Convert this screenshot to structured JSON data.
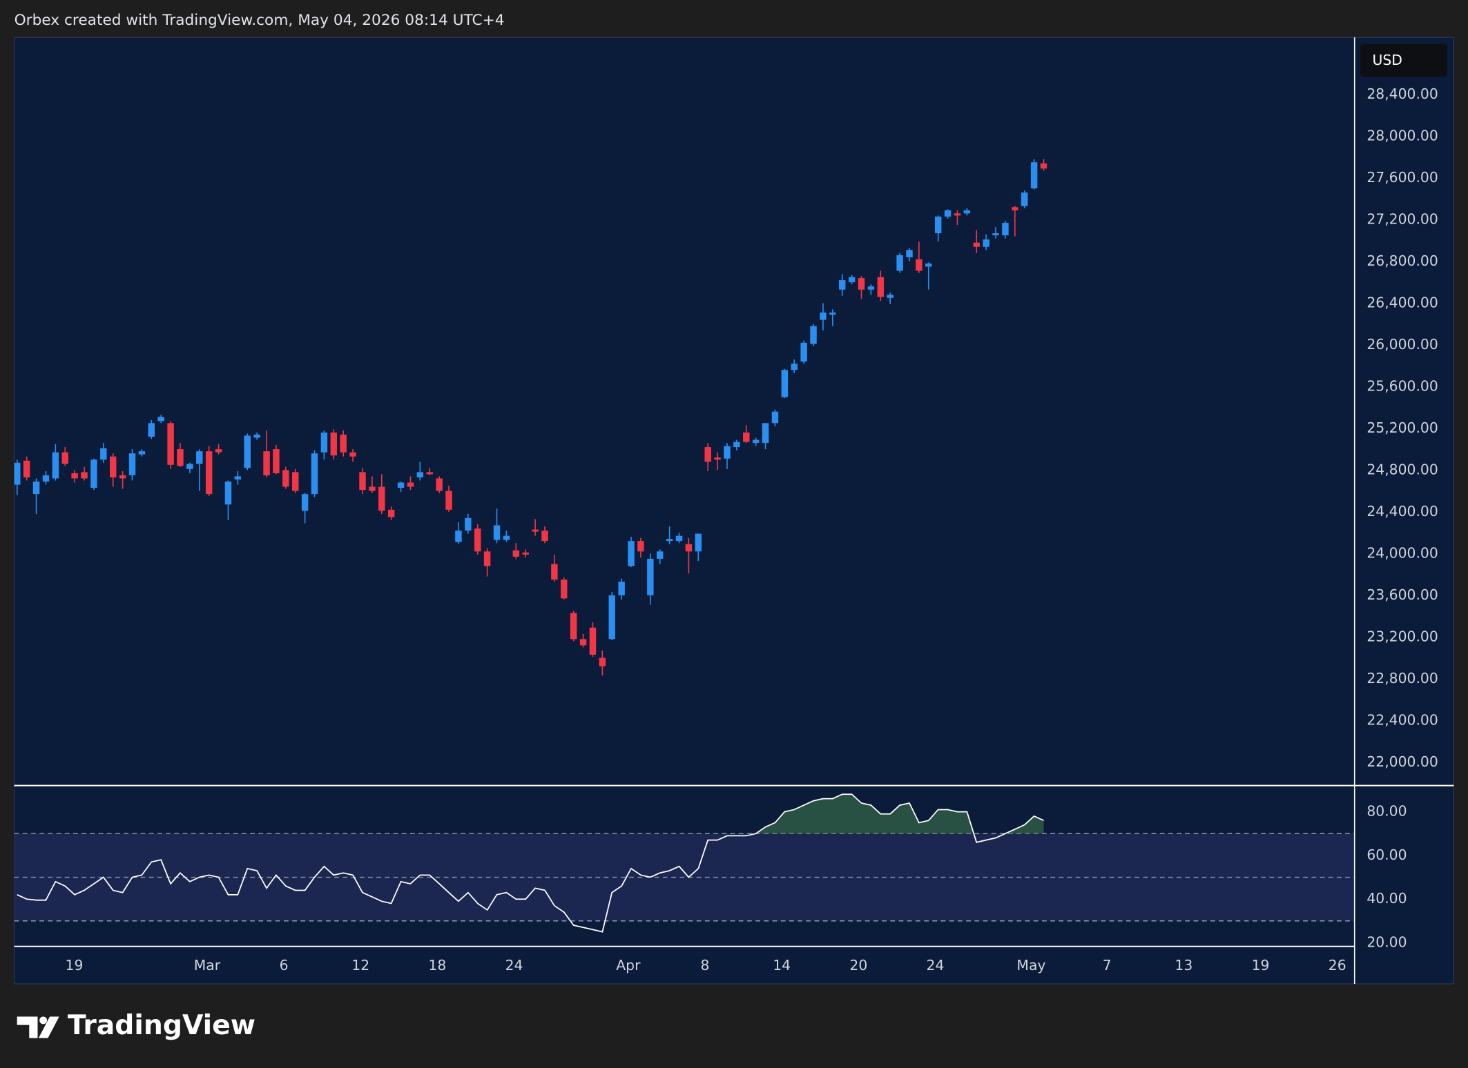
{
  "header": "Orbex created with TradingView.com, May 04, 2026 08:14 UTC+4",
  "brand": "TradingView",
  "chart_data": [
    {
      "type": "candlestick",
      "currency": "USD",
      "up_color": "#2a8ff0",
      "down_color": "#f23645",
      "open": [
        24660,
        24890,
        24570,
        24690,
        24720,
        24970,
        24770,
        24780,
        24630,
        24900,
        24930,
        24750,
        24750,
        24950,
        25120,
        25270,
        25250,
        25000,
        24810,
        24860,
        24980,
        25000,
        24470,
        24710,
        24820,
        25110,
        24980,
        25000,
        24800,
        24780,
        24410,
        24570,
        24970,
        25160,
        25140,
        24970,
        24780,
        24640,
        24640,
        24420,
        24630,
        24680,
        24730,
        24780,
        24720,
        24600,
        24110,
        24220,
        24240,
        24020,
        24130,
        24130,
        24030,
        24010,
        24230,
        24220,
        23900,
        23750,
        23430,
        23180,
        23290,
        23000,
        23180,
        23600,
        23880,
        24120,
        23600,
        23950,
        24120,
        24120,
        24090,
        24020,
        25020,
        24920,
        24910,
        25020,
        25160,
        25060,
        25060,
        25250,
        25500,
        25760,
        25840,
        26010,
        26240,
        26290,
        26530,
        26600,
        26640,
        26530,
        26650,
        26450,
        26710,
        26840,
        26820,
        26750,
        27070,
        27230,
        27260,
        27260,
        26980,
        26940,
        27050,
        27050,
        27320,
        27330,
        27500,
        27740
      ],
      "high": [
        24900,
        24930,
        24720,
        24790,
        25050,
        25020,
        24800,
        24830,
        24910,
        25060,
        24960,
        24790,
        25000,
        25000,
        25280,
        25330,
        25270,
        25060,
        24870,
        25000,
        25030,
        25050,
        24700,
        24790,
        25150,
        25160,
        25180,
        25040,
        24830,
        24810,
        24580,
        24990,
        25180,
        25190,
        25180,
        25000,
        24820,
        24740,
        24760,
        24450,
        24690,
        24740,
        24880,
        24820,
        24740,
        24650,
        24300,
        24380,
        24280,
        24050,
        24430,
        24220,
        24100,
        24040,
        24330,
        24260,
        23990,
        23770,
        23450,
        23230,
        23340,
        23070,
        23630,
        23760,
        24160,
        24150,
        24000,
        24040,
        24260,
        24200,
        24150,
        24190,
        25060,
        24970,
        25060,
        25090,
        25230,
        25110,
        25250,
        25380,
        25770,
        25860,
        26040,
        26200,
        26400,
        26340,
        26680,
        26670,
        26660,
        26580,
        26710,
        26500,
        26880,
        26930,
        26990,
        26790,
        27240,
        27300,
        27290,
        27310,
        27100,
        27060,
        27130,
        27190,
        27330,
        27480,
        27780,
        27780
      ],
      "low": [
        24560,
        24700,
        24380,
        24660,
        24700,
        24840,
        24680,
        24700,
        24610,
        24870,
        24640,
        24620,
        24700,
        24930,
        25100,
        25250,
        24810,
        24830,
        24770,
        24600,
        24550,
        24950,
        24320,
        24660,
        24800,
        25090,
        24730,
        24760,
        24620,
        24580,
        24290,
        24540,
        24900,
        24900,
        24930,
        24880,
        24570,
        24580,
        24380,
        24320,
        24590,
        24610,
        24700,
        24750,
        24580,
        24400,
        24090,
        24190,
        23990,
        23780,
        24100,
        24110,
        23950,
        23960,
        24170,
        24100,
        23730,
        23560,
        23160,
        23100,
        23010,
        22830,
        23170,
        23560,
        23870,
        23960,
        23510,
        23900,
        24090,
        24100,
        23810,
        23930,
        24790,
        24800,
        24810,
        24990,
        25060,
        25030,
        25000,
        25220,
        25490,
        25730,
        25820,
        25990,
        26140,
        26180,
        26470,
        26580,
        26440,
        26480,
        26420,
        26390,
        26690,
        26800,
        26690,
        26530,
        26990,
        27210,
        27150,
        27240,
        26880,
        26910,
        27020,
        27020,
        27040,
        27310,
        27490,
        27670
      ],
      "close": [
        24870,
        24730,
        24690,
        24750,
        24970,
        24860,
        24720,
        24720,
        24900,
        25010,
        24730,
        24720,
        24960,
        24980,
        25250,
        25310,
        24850,
        24840,
        24860,
        24980,
        24570,
        24970,
        24690,
        24740,
        25130,
        25140,
        24750,
        24770,
        24640,
        24600,
        24570,
        24960,
        25160,
        24940,
        24970,
        24930,
        24610,
        24600,
        24410,
        24350,
        24680,
        24640,
        24780,
        24760,
        24600,
        24420,
        24220,
        24340,
        24020,
        23880,
        24270,
        24170,
        23970,
        23990,
        24210,
        24120,
        23750,
        23570,
        23180,
        23120,
        23030,
        22920,
        23600,
        23730,
        24120,
        24020,
        23950,
        24020,
        24140,
        24170,
        24020,
        24190,
        24880,
        24900,
        25030,
        25070,
        25070,
        25090,
        25250,
        25360,
        25760,
        25820,
        26020,
        26180,
        26310,
        26310,
        26620,
        26650,
        26530,
        26560,
        26460,
        26480,
        26860,
        26910,
        26710,
        26780,
        27230,
        27290,
        27240,
        27290,
        26940,
        27010,
        27070,
        27170,
        27290,
        27460,
        27750,
        27690
      ],
      "ylim": [
        21776,
        28947
      ],
      "yticks": [
        {
          "value": 22000,
          "label": "22,000.00"
        },
        {
          "value": 22400,
          "label": "22,400.00"
        },
        {
          "value": 22800,
          "label": "22,800.00"
        },
        {
          "value": 23200,
          "label": "23,200.00"
        },
        {
          "value": 23600,
          "label": "23,600.00"
        },
        {
          "value": 24000,
          "label": "24,000.00"
        },
        {
          "value": 24400,
          "label": "24,400.00"
        },
        {
          "value": 24800,
          "label": "24,800.00"
        },
        {
          "value": 25200,
          "label": "25,200.00"
        },
        {
          "value": 25600,
          "label": "25,600.00"
        },
        {
          "value": 26000,
          "label": "26,000.00"
        },
        {
          "value": 26400,
          "label": "26,400.00"
        },
        {
          "value": 26800,
          "label": "26,800.00"
        },
        {
          "value": 27200,
          "label": "27,200.00"
        },
        {
          "value": 27600,
          "label": "27,600.00"
        },
        {
          "value": 28000,
          "label": "28,000.00"
        },
        {
          "value": 28400,
          "label": "28,400.00"
        }
      ],
      "xlim": [
        -0.3,
        139.4
      ]
    },
    {
      "type": "line",
      "color": "#ffffff",
      "fill_color": "#2f5e46",
      "values": [
        42,
        40,
        39.5,
        39.5,
        48,
        46,
        42,
        44,
        47,
        50,
        44,
        43,
        50,
        51,
        57,
        58,
        47,
        52,
        48,
        50,
        51,
        50,
        42,
        42,
        54,
        53,
        45,
        51,
        46,
        44,
        44,
        50,
        55,
        51,
        52,
        51,
        43,
        41,
        39,
        38,
        48,
        47,
        51,
        51,
        47,
        43,
        39,
        43,
        38,
        35,
        42,
        43,
        40,
        40,
        45,
        44,
        37,
        34,
        28,
        27,
        26,
        25,
        43,
        46,
        54,
        51,
        50,
        52,
        53,
        55,
        50,
        54,
        67,
        67,
        69,
        69,
        69,
        70,
        73,
        75,
        80,
        81,
        83,
        85,
        86,
        86,
        88,
        88,
        84,
        83,
        79,
        79,
        83,
        84,
        75,
        76,
        81,
        81,
        80,
        80,
        66,
        67,
        68,
        70,
        72,
        74,
        78,
        76
      ],
      "levels": [
        70,
        50,
        30
      ],
      "band_color": "#1b2750",
      "ylim": [
        18.3,
        92
      ],
      "yticks": [
        {
          "value": 20,
          "label": "20.00"
        },
        {
          "value": 40,
          "label": "40.00"
        },
        {
          "value": 60,
          "label": "60.00"
        },
        {
          "value": 80,
          "label": "80.00"
        }
      ],
      "xlim": [
        -0.3,
        139.4
      ],
      "xticks": [
        {
          "value": 5.95,
          "label": "19"
        },
        {
          "value": 19.8,
          "label": "Mar"
        },
        {
          "value": 27.8,
          "label": "6"
        },
        {
          "value": 35.8,
          "label": "12"
        },
        {
          "value": 43.8,
          "label": "18"
        },
        {
          "value": 51.8,
          "label": "24"
        },
        {
          "value": 63.7,
          "label": "Apr"
        },
        {
          "value": 71.7,
          "label": "8"
        },
        {
          "value": 79.7,
          "label": "14"
        },
        {
          "value": 87.7,
          "label": "20"
        },
        {
          "value": 95.7,
          "label": "24"
        },
        {
          "value": 105.7,
          "label": "May"
        },
        {
          "value": 113.6,
          "label": "7"
        },
        {
          "value": 121.6,
          "label": "13"
        },
        {
          "value": 129.6,
          "label": "19"
        },
        {
          "value": 137.6,
          "label": "26"
        }
      ]
    }
  ]
}
